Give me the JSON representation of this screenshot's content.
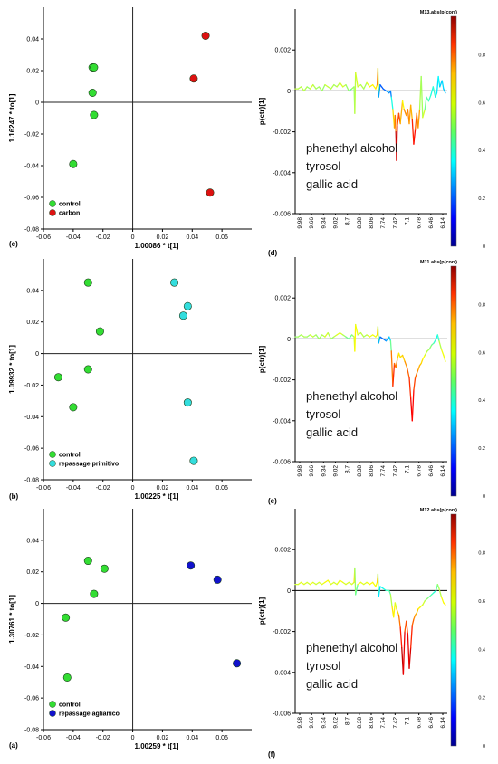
{
  "colors": {
    "control": "#33dd33",
    "carbon": "#dd1111",
    "repassage_primitivo": "#33dddd",
    "repassage_aglianico": "#1111cc",
    "axis": "#000000",
    "zero_line": "#222222"
  },
  "chart_data": [
    {
      "id": "c",
      "panel_label": "(c)",
      "type": "scatter",
      "xlabel": "1.00086 * t[1]",
      "ylabel": "1.16247 * to[1]",
      "xlim": [
        -0.06,
        0.08
      ],
      "ylim": [
        -0.08,
        0.06
      ],
      "xticks": [
        -0.06,
        -0.04,
        -0.02,
        0,
        0.02,
        0.04,
        0.06
      ],
      "xtick_labels": [
        "-0.06",
        "-0.04",
        "-0.02",
        "0",
        "0.02",
        "0.04",
        "0.06"
      ],
      "yticks": [
        -0.08,
        -0.06,
        -0.04,
        -0.02,
        0,
        0.02,
        0.04
      ],
      "ytick_labels": [
        "-0.08",
        "-0.06",
        "-0.04",
        "-0.02",
        "0",
        "0.02",
        "0.04"
      ],
      "legend_position": "bottom-left",
      "series": [
        {
          "name": "control",
          "color": "#33dd33",
          "points": [
            [
              -0.027,
              0.022
            ],
            [
              -0.026,
              0.022
            ],
            [
              -0.027,
              0.006
            ],
            [
              -0.026,
              -0.008
            ],
            [
              -0.04,
              -0.039
            ]
          ]
        },
        {
          "name": "carbon",
          "color": "#dd1111",
          "points": [
            [
              0.049,
              0.042
            ],
            [
              0.041,
              0.015
            ],
            [
              0.052,
              -0.057
            ]
          ]
        }
      ]
    },
    {
      "id": "d",
      "panel_label": "(d)",
      "type": "line",
      "ylabel": "p(ctr)[1]",
      "colorbar_title": "M13.abs(p(corr)",
      "ylim": [
        -0.006,
        0.004
      ],
      "yticks": [
        -0.006,
        -0.004,
        -0.002,
        0,
        0.002
      ],
      "ytick_labels": [
        "-0.006",
        "-0.004",
        "-0.002",
        "0",
        "0.002"
      ],
      "xlim": [
        9.98,
        5.9
      ],
      "xtick_labels": [
        "9.98",
        "9.66",
        "9.34",
        "9.02",
        "8.7",
        "8.38",
        "8.06",
        "7.74",
        "7.42",
        "7.1",
        "6.78",
        "6.46",
        "6.14"
      ],
      "colorbar_ticks": [
        "0",
        "0.2",
        "0.4",
        "0.6",
        "0.8"
      ],
      "annotations": [
        "phenethyl alcohol",
        "tyrosol",
        "gallic acid"
      ],
      "line": {
        "x": [
          9.98,
          9.9,
          9.82,
          9.74,
          9.66,
          9.58,
          9.5,
          9.42,
          9.34,
          9.26,
          9.18,
          9.1,
          9.02,
          8.94,
          8.86,
          8.78,
          8.7,
          8.62,
          8.54,
          8.46,
          8.4,
          8.38,
          8.36,
          8.3,
          8.22,
          8.14,
          8.06,
          7.98,
          7.9,
          7.82,
          7.78,
          7.76,
          7.74,
          7.7,
          7.62,
          7.54,
          7.46,
          7.42,
          7.4,
          7.36,
          7.32,
          7.3,
          7.28,
          7.26,
          7.24,
          7.2,
          7.16,
          7.1,
          7.06,
          7.0,
          6.96,
          6.92,
          6.88,
          6.84,
          6.8,
          6.76,
          6.72,
          6.68,
          6.64,
          6.6,
          6.56,
          6.5,
          6.46,
          6.4,
          6.34,
          6.28,
          6.22,
          6.18,
          6.14,
          6.1,
          6.04,
          6.0,
          5.95
        ],
        "y": [
          0.0001,
          0.0001,
          0.0002,
          0.0,
          0.0002,
          0.0001,
          0.0003,
          0.0001,
          0.0002,
          0.0,
          0.0003,
          0.0002,
          0.0001,
          0.0003,
          0.0002,
          0.0004,
          0.0002,
          0.0003,
          0.0,
          0.0001,
          0.0002,
          -0.0011,
          0.0009,
          0.0002,
          0.0003,
          0.0001,
          0.0004,
          0.0002,
          0.0003,
          0.0001,
          0.0003,
          0.0011,
          -0.0003,
          0.0003,
          0.0001,
          0.0,
          -0.0001,
          0.0,
          -0.0003,
          -0.0009,
          -0.0018,
          -0.0012,
          -0.002,
          -0.0034,
          -0.0017,
          -0.0011,
          -0.0016,
          -0.0005,
          -0.0009,
          -0.0012,
          -0.0009,
          -0.0016,
          -0.0007,
          -0.0014,
          -0.0026,
          -0.0019,
          -0.0011,
          -0.0018,
          -0.0009,
          0.0007,
          -0.0013,
          -0.0009,
          -0.0003,
          -0.0005,
          -0.0002,
          0.0002,
          -0.0003,
          -0.0001,
          0.0007,
          0.0002,
          0.0005,
          0.0001,
          -0.0001
        ],
        "c": [
          0.55,
          0.58,
          0.52,
          0.6,
          0.5,
          0.55,
          0.62,
          0.48,
          0.58,
          0.5,
          0.55,
          0.6,
          0.52,
          0.58,
          0.5,
          0.62,
          0.55,
          0.6,
          0.45,
          0.5,
          0.55,
          0.5,
          0.62,
          0.55,
          0.6,
          0.5,
          0.58,
          0.62,
          0.66,
          0.6,
          0.7,
          0.78,
          0.35,
          0.22,
          0.2,
          0.25,
          0.32,
          0.2,
          0.3,
          0.5,
          0.82,
          0.62,
          0.9,
          0.96,
          0.86,
          0.75,
          0.85,
          0.55,
          0.7,
          0.78,
          0.66,
          0.84,
          0.6,
          0.8,
          0.88,
          0.85,
          0.7,
          0.8,
          0.64,
          0.45,
          0.62,
          0.55,
          0.42,
          0.5,
          0.36,
          0.44,
          0.4,
          0.3,
          0.4,
          0.35,
          0.3,
          0.38,
          0.25
        ]
      }
    },
    {
      "id": "b",
      "panel_label": "(b)",
      "type": "scatter",
      "xlabel": "1.00225 * t[1]",
      "ylabel": "1.09932 * to[1]",
      "xlim": [
        -0.06,
        0.08
      ],
      "ylim": [
        -0.08,
        0.06
      ],
      "xticks": [
        -0.06,
        -0.04,
        -0.02,
        0,
        0.02,
        0.04,
        0.06
      ],
      "xtick_labels": [
        "-0.06",
        "-0.04",
        "-0.02",
        "0",
        "0.02",
        "0.04",
        "0.06"
      ],
      "yticks": [
        -0.08,
        -0.06,
        -0.04,
        -0.02,
        0,
        0.02,
        0.04
      ],
      "ytick_labels": [
        "-0.08",
        "-0.06",
        "-0.04",
        "-0.02",
        "0",
        "0.02",
        "0.04"
      ],
      "legend_position": "bottom-left",
      "series": [
        {
          "name": "control",
          "color": "#33dd33",
          "points": [
            [
              -0.03,
              0.045
            ],
            [
              -0.022,
              0.014
            ],
            [
              -0.05,
              -0.015
            ],
            [
              -0.03,
              -0.01
            ],
            [
              -0.04,
              -0.034
            ]
          ]
        },
        {
          "name": "repassage primitivo",
          "color": "#33dddd",
          "points": [
            [
              0.028,
              0.045
            ],
            [
              0.037,
              0.03
            ],
            [
              0.034,
              0.024
            ],
            [
              0.037,
              -0.031
            ],
            [
              0.041,
              -0.068
            ]
          ]
        }
      ]
    },
    {
      "id": "e",
      "panel_label": "(e)",
      "type": "line",
      "ylabel": "p(ctr)[1]",
      "colorbar_title": "M11.abs(p(corr)",
      "ylim": [
        -0.006,
        0.004
      ],
      "yticks": [
        -0.006,
        -0.004,
        -0.002,
        0,
        0.002
      ],
      "ytick_labels": [
        "-0.006",
        "-0.004",
        "-0.002",
        "0",
        "0.002"
      ],
      "xlim": [
        9.98,
        5.9
      ],
      "xtick_labels": [
        "9.98",
        "9.66",
        "9.34",
        "9.02",
        "8.7",
        "8.38",
        "8.06",
        "7.74",
        "7.42",
        "7.1",
        "6.78",
        "6.46",
        "6.14"
      ],
      "colorbar_ticks": [
        "0",
        "0.2",
        "0.4",
        "0.6",
        "0.8"
      ],
      "annotations": [
        "phenethyl alcohol",
        "tyrosol",
        "gallic acid"
      ],
      "line": {
        "x": [
          9.98,
          9.9,
          9.82,
          9.74,
          9.66,
          9.58,
          9.5,
          9.42,
          9.34,
          9.26,
          9.18,
          9.1,
          9.02,
          8.94,
          8.86,
          8.78,
          8.7,
          8.62,
          8.54,
          8.46,
          8.4,
          8.38,
          8.36,
          8.3,
          8.22,
          8.14,
          8.06,
          7.98,
          7.9,
          7.82,
          7.78,
          7.76,
          7.74,
          7.7,
          7.62,
          7.54,
          7.46,
          7.42,
          7.4,
          7.36,
          7.32,
          7.28,
          7.24,
          7.2,
          7.16,
          7.1,
          7.04,
          6.98,
          6.92,
          6.88,
          6.84,
          6.8,
          6.76,
          6.72,
          6.68,
          6.64,
          6.6,
          6.56,
          6.5,
          6.44,
          6.38,
          6.32,
          6.26,
          6.2,
          6.16,
          6.12,
          6.06,
          6.0,
          5.95
        ],
        "y": [
          0.0001,
          0.0001,
          0.0002,
          0.0001,
          0.0001,
          0.0002,
          0.0001,
          0.0002,
          0.0,
          0.0002,
          0.0001,
          0.0003,
          0.0,
          0.0001,
          0.0002,
          0.0003,
          0.0002,
          0.0001,
          0.0,
          0.0002,
          0.0001,
          -0.0006,
          0.0007,
          0.0002,
          0.0003,
          0.0001,
          0.0002,
          0.0001,
          0.0002,
          0.0001,
          0.0002,
          0.0006,
          -0.0002,
          0.0001,
          0.0,
          -0.0001,
          0.0001,
          -0.0001,
          -0.0006,
          -0.0023,
          -0.0012,
          -0.0014,
          -0.001,
          -0.0007,
          -0.0009,
          -0.0008,
          -0.0011,
          -0.0014,
          -0.0019,
          -0.0029,
          -0.004,
          -0.0025,
          -0.0019,
          -0.0017,
          -0.0015,
          -0.0013,
          -0.0012,
          -0.001,
          -0.0008,
          -0.0006,
          -0.0005,
          -0.0003,
          -0.0002,
          0.0,
          0.0002,
          -0.0001,
          -0.0005,
          -0.0008,
          -0.0011
        ],
        "c": [
          0.5,
          0.55,
          0.52,
          0.58,
          0.5,
          0.56,
          0.6,
          0.5,
          0.55,
          0.52,
          0.58,
          0.6,
          0.5,
          0.55,
          0.58,
          0.62,
          0.55,
          0.52,
          0.45,
          0.5,
          0.55,
          0.6,
          0.66,
          0.55,
          0.6,
          0.52,
          0.56,
          0.6,
          0.62,
          0.6,
          0.62,
          0.7,
          0.35,
          0.25,
          0.2,
          0.28,
          0.3,
          0.36,
          0.6,
          0.92,
          0.75,
          0.78,
          0.72,
          0.62,
          0.66,
          0.65,
          0.7,
          0.76,
          0.8,
          0.86,
          0.9,
          0.84,
          0.78,
          0.76,
          0.72,
          0.7,
          0.68,
          0.64,
          0.6,
          0.56,
          0.52,
          0.5,
          0.45,
          0.4,
          0.36,
          0.5,
          0.6,
          0.62,
          0.6
        ]
      }
    },
    {
      "id": "a",
      "panel_label": "(a)",
      "type": "scatter",
      "xlabel": "1.00259 * t[1]",
      "ylabel": "1.30761 * to[1]",
      "xlim": [
        -0.06,
        0.08
      ],
      "ylim": [
        -0.08,
        0.06
      ],
      "xticks": [
        -0.06,
        -0.04,
        -0.02,
        0,
        0.02,
        0.04,
        0.06
      ],
      "xtick_labels": [
        "-0.06",
        "-0.04",
        "-0.02",
        "0",
        "0.02",
        "0.04",
        "0.06"
      ],
      "yticks": [
        -0.08,
        -0.06,
        -0.04,
        -0.02,
        0,
        0.02,
        0.04
      ],
      "ytick_labels": [
        "-0.08",
        "-0.06",
        "-0.04",
        "-0.02",
        "0",
        "0.02",
        "0.04"
      ],
      "legend_position": "bottom-left",
      "series": [
        {
          "name": "control",
          "color": "#33dd33",
          "points": [
            [
              -0.03,
              0.027
            ],
            [
              -0.019,
              0.022
            ],
            [
              -0.026,
              0.006
            ],
            [
              -0.045,
              -0.009
            ],
            [
              -0.044,
              -0.047
            ]
          ]
        },
        {
          "name": "repassage aglianico",
          "color": "#1111cc",
          "points": [
            [
              0.039,
              0.024
            ],
            [
              0.057,
              0.015
            ],
            [
              0.07,
              -0.038
            ]
          ]
        }
      ]
    },
    {
      "id": "f",
      "panel_label": "(f)",
      "type": "line",
      "ylabel": "p(ctr)[1]",
      "colorbar_title": "M12.abs(p(corr)",
      "ylim": [
        -0.006,
        0.004
      ],
      "yticks": [
        -0.006,
        -0.004,
        -0.002,
        0,
        0.002
      ],
      "ytick_labels": [
        "-0.006",
        "-0.004",
        "-0.002",
        "0",
        "0.002"
      ],
      "xlim": [
        9.98,
        5.9
      ],
      "xtick_labels": [
        "9.98",
        "9.66",
        "9.34",
        "9.02",
        "8.7",
        "8.38",
        "8.06",
        "7.74",
        "7.42",
        "7.1",
        "6.78",
        "6.46",
        "6.14"
      ],
      "colorbar_ticks": [
        "0",
        "0.2",
        "0.4",
        "0.6",
        "0.8"
      ],
      "annotations": [
        "phenethyl alcohol",
        "tyrosol",
        "gallic acid"
      ],
      "line": {
        "x": [
          9.98,
          9.9,
          9.82,
          9.74,
          9.66,
          9.58,
          9.5,
          9.42,
          9.34,
          9.26,
          9.18,
          9.1,
          9.02,
          8.94,
          8.86,
          8.78,
          8.7,
          8.62,
          8.54,
          8.46,
          8.4,
          8.38,
          8.36,
          8.3,
          8.22,
          8.14,
          8.06,
          7.98,
          7.9,
          7.82,
          7.78,
          7.76,
          7.74,
          7.7,
          7.62,
          7.54,
          7.46,
          7.42,
          7.38,
          7.34,
          7.3,
          7.26,
          7.2,
          7.16,
          7.12,
          7.08,
          7.04,
          7.0,
          6.96,
          6.92,
          6.88,
          6.84,
          6.8,
          6.76,
          6.72,
          6.68,
          6.62,
          6.56,
          6.5,
          6.44,
          6.38,
          6.32,
          6.26,
          6.2,
          6.16,
          6.12,
          6.06,
          6.0,
          5.95
        ],
        "y": [
          0.0003,
          0.0003,
          0.0004,
          0.0003,
          0.0004,
          0.0003,
          0.0004,
          0.0003,
          0.0004,
          0.0003,
          0.0004,
          0.0005,
          0.0003,
          0.0004,
          0.0003,
          0.0005,
          0.0004,
          0.0003,
          0.0004,
          0.0003,
          0.0004,
          0.0011,
          -0.0002,
          0.0003,
          0.0004,
          0.0003,
          0.0004,
          0.0003,
          0.0004,
          0.0002,
          0.0004,
          0.0008,
          -0.0003,
          0.0002,
          0.0001,
          0.0,
          0.0,
          -0.0002,
          -0.0008,
          -0.0013,
          -0.0006,
          -0.0009,
          -0.0012,
          -0.0018,
          -0.0028,
          -0.0041,
          -0.002,
          -0.0015,
          -0.0021,
          -0.0038,
          -0.0028,
          -0.0017,
          -0.0014,
          -0.0012,
          -0.0011,
          -0.0009,
          -0.0008,
          -0.0007,
          -0.0005,
          -0.0004,
          -0.0003,
          -0.0002,
          -0.0001,
          0.0,
          0.0003,
          0.0001,
          -0.0003,
          -0.0006,
          -0.0007
        ],
        "c": [
          0.55,
          0.6,
          0.58,
          0.62,
          0.56,
          0.6,
          0.62,
          0.55,
          0.6,
          0.58,
          0.62,
          0.64,
          0.58,
          0.6,
          0.56,
          0.64,
          0.6,
          0.58,
          0.6,
          0.56,
          0.6,
          0.7,
          0.35,
          0.6,
          0.62,
          0.58,
          0.6,
          0.62,
          0.64,
          0.6,
          0.64,
          0.7,
          0.3,
          0.4,
          0.36,
          0.45,
          0.42,
          0.5,
          0.6,
          0.7,
          0.56,
          0.62,
          0.72,
          0.8,
          0.9,
          0.97,
          0.82,
          0.76,
          0.84,
          0.95,
          0.88,
          0.8,
          0.76,
          0.72,
          0.7,
          0.66,
          0.62,
          0.6,
          0.56,
          0.52,
          0.48,
          0.45,
          0.42,
          0.4,
          0.55,
          0.5,
          0.6,
          0.64,
          0.62
        ]
      }
    }
  ]
}
